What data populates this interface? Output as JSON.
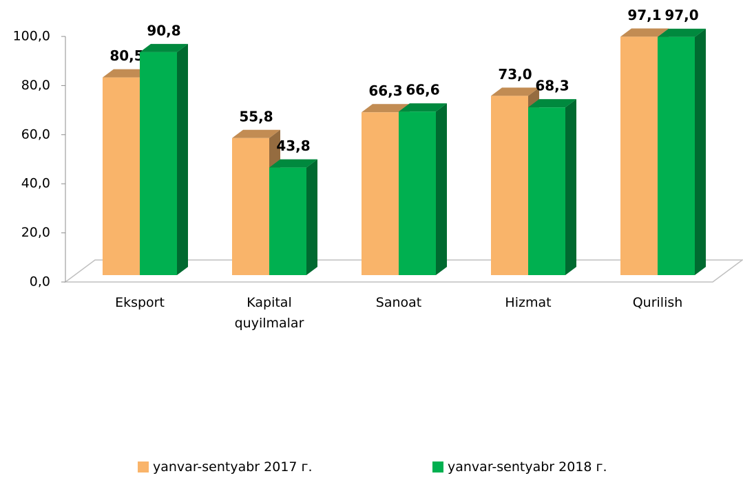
{
  "chart_data": {
    "type": "bar3d",
    "categories": [
      "Eksport",
      "Kapital quyilmalar",
      "Sanoat",
      "Hizmat",
      "Qurilish"
    ],
    "series": [
      {
        "name": "yanvar-sentyabr 2017 г.",
        "color": "#F9B46A",
        "values": [
          80.5,
          55.8,
          66.3,
          73.0,
          97.1
        ],
        "value_labels": [
          "80,5",
          "55,8",
          "66,3",
          "73,0",
          "97,1"
        ]
      },
      {
        "name": "yanvar-sentyabr 2018 г.",
        "color": "#00B050",
        "values": [
          90.8,
          43.8,
          66.6,
          68.3,
          97.0
        ],
        "value_labels": [
          "90,8",
          "43,8",
          "66,6",
          "68,3",
          "97,0"
        ]
      }
    ],
    "ylim": [
      0,
      100
    ],
    "yticks": [
      {
        "value": 0,
        "label": "0,0"
      },
      {
        "value": 20,
        "label": "20,0"
      },
      {
        "value": 40,
        "label": "40,0"
      },
      {
        "value": 60,
        "label": "60,0"
      },
      {
        "value": 80,
        "label": "80,0"
      },
      {
        "value": 100,
        "label": "100,0"
      }
    ],
    "legend": "bottom"
  }
}
